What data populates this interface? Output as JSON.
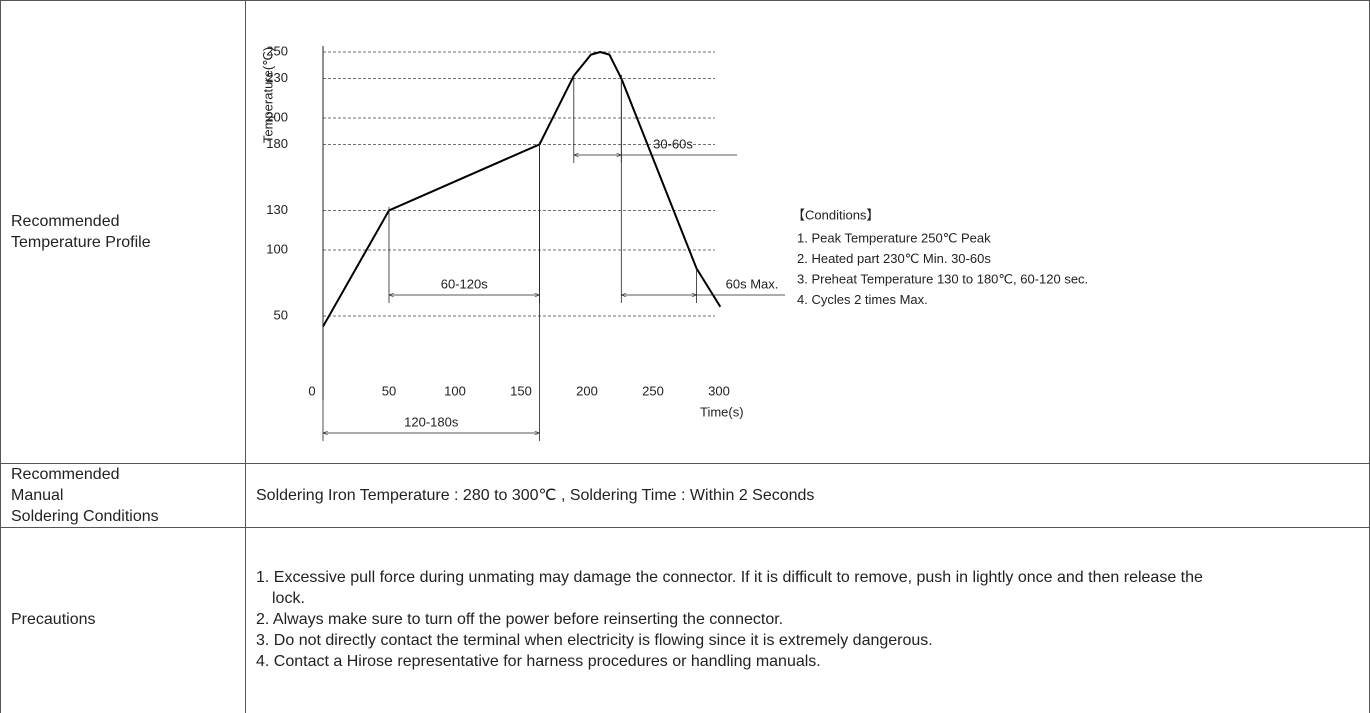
{
  "chart_data": {
    "type": "line",
    "xlabel": "Time(s)",
    "ylabel": "Temperature(℃)",
    "x": [
      0,
      50,
      164,
      190,
      203,
      210,
      217,
      226,
      283,
      301
    ],
    "series": [
      {
        "color": "#000000",
        "values": [
          42,
          130,
          180,
          232,
          248,
          250,
          248,
          230,
          86,
          57
        ]
      }
    ],
    "xlim": [
      0,
      300
    ],
    "ylim": [
      0,
      250
    ],
    "xticks": [
      0,
      50,
      100,
      150,
      200,
      250,
      300
    ],
    "yticks": [
      50,
      100,
      130,
      180,
      200,
      230,
      250
    ],
    "grid": true,
    "annotations": [
      {
        "text": "30-60s",
        "x": [
          190,
          226
        ]
      },
      {
        "text": "60-120s",
        "x": [
          50,
          164
        ]
      },
      {
        "text": "60s Max.",
        "x": [
          226,
          283
        ]
      },
      {
        "text": "120-180s",
        "x": [
          0,
          164
        ]
      }
    ]
  },
  "table": {
    "rows": [
      {
        "label": [
          "Recommended",
          "Temperature Profile"
        ],
        "conditions": {
          "heading": "【Conditions】",
          "items": [
            "1. Peak Temperature   250℃ Peak",
            "2. Heated part 230℃ Min.   30-60s",
            "3. Preheat Temperature 130 to 180℃, 60-120 sec.",
            "4. Cycles 2 times Max."
          ]
        }
      },
      {
        "label": [
          "Recommended",
          "Manual",
          "Soldering Conditions"
        ],
        "text": "Soldering Iron Temperature : 280 to 300℃ , Soldering Time : Within 2 Seconds"
      },
      {
        "label": [
          "Precautions"
        ],
        "items": [
          "1. Excessive pull force during unmating may damage the connector. If it is difficult to remove, push in lightly once and then release the lock.",
          "2. Always make sure to turn off the power before reinserting the connector.",
          "3. Do not directly contact the terminal when electricity is flowing since it is extremely dangerous.",
          "4. Contact a Hirose representative for harness procedures or handling manuals."
        ]
      }
    ]
  }
}
